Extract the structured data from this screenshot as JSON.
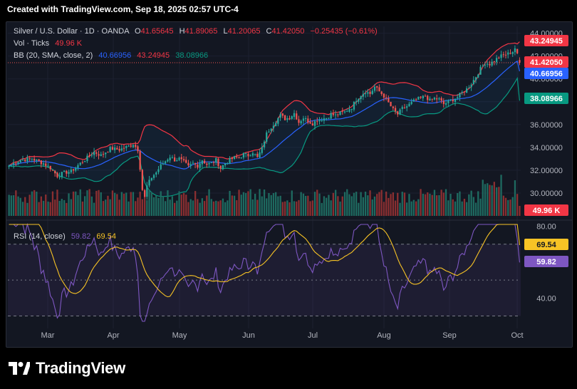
{
  "header": {
    "created_text": "Created with TradingView.com, Sep 18, 2025 02:57 UTC-4"
  },
  "legend": {
    "symbol": "Silver / U.S. Dollar · 1D · OANDA",
    "open_label": "O",
    "open": "41.65645",
    "high_label": "H",
    "high": "41.89065",
    "low_label": "L",
    "low": "41.20065",
    "close_label": "C",
    "close": "41.42050",
    "change": "−0.25435 (−0.61%)",
    "vol_label": "Vol · Ticks",
    "vol_value": "49.96 K",
    "bb_label": "BB (20, SMA, close, 2)",
    "bb_basis": "40.66956",
    "bb_upper": "43.24945",
    "bb_lower": "38.08966",
    "rsi_label": "RSI (14, close)",
    "rsi_value": "59.82",
    "rsi_ma": "69.54"
  },
  "price_badges": {
    "upper": "43.24945",
    "close": "41.42050",
    "basis": "40.66956",
    "lower": "38.08966",
    "volume": "49.96 K",
    "rsi_ma": "69.54",
    "rsi": "59.82"
  },
  "colors": {
    "up": "#26a69a",
    "down": "#ef5350",
    "basis": "#2962ff",
    "upper": "#f23645",
    "lower": "#089981",
    "rsi": "#7e57c2",
    "rsi_ma": "#f7c325",
    "volume_up": "#1e6a60",
    "volume_down": "#8a2f31",
    "grid": "#1c2030",
    "axis_text": "#b2b5be"
  },
  "footer": {
    "brand": "TradingView",
    "logo_icon": "tradingview-logo-icon"
  },
  "chart_data": [
    {
      "type": "candlestick",
      "title": "Silver / U.S. Dollar · 1D · OANDA",
      "x_tick_labels": [
        "Mar",
        "Apr",
        "May",
        "Jun",
        "Jul",
        "Aug",
        "Sep",
        "Oct"
      ],
      "y_tick_labels": [
        "30.00000",
        "32.00000",
        "34.00000",
        "36.00000",
        "40.00000",
        "42.00000",
        "44.00000"
      ],
      "ylim": [
        28.0,
        44.6
      ],
      "grid": true,
      "close_path": [
        [
          0,
          32.4
        ],
        [
          5,
          32.9
        ],
        [
          10,
          33.0
        ],
        [
          15,
          32.6
        ],
        [
          18,
          32.2
        ],
        [
          21,
          31.5
        ],
        [
          24,
          31.8
        ],
        [
          27,
          31.9
        ],
        [
          31,
          32.6
        ],
        [
          34,
          33.1
        ],
        [
          37,
          33.6
        ],
        [
          40,
          33.3
        ],
        [
          44,
          33.9
        ],
        [
          48,
          33.8
        ],
        [
          52,
          34.1
        ],
        [
          54,
          34.3
        ],
        [
          56,
          33.8
        ],
        [
          57,
          32.2
        ],
        [
          58,
          30.3
        ],
        [
          59,
          29.6
        ],
        [
          60,
          30.6
        ],
        [
          62,
          31.4
        ],
        [
          64,
          31.8
        ],
        [
          66,
          32.4
        ],
        [
          68,
          32.8
        ],
        [
          70,
          33.2
        ],
        [
          72,
          32.9
        ],
        [
          74,
          33.0
        ],
        [
          76,
          32.7
        ],
        [
          78,
          32.3
        ],
        [
          80,
          32.6
        ],
        [
          82,
          32.4
        ],
        [
          84,
          32.9
        ],
        [
          86,
          32.5
        ],
        [
          88,
          32.6
        ],
        [
          90,
          32.9
        ],
        [
          92,
          32.2
        ],
        [
          94,
          32.6
        ],
        [
          96,
          32.9
        ],
        [
          98,
          33.1
        ],
        [
          100,
          33.1
        ],
        [
          102,
          33.4
        ],
        [
          104,
          33.3
        ],
        [
          106,
          33.6
        ],
        [
          108,
          33.1
        ],
        [
          110,
          33.9
        ],
        [
          111,
          34.6
        ],
        [
          112,
          35.2
        ],
        [
          114,
          35.8
        ],
        [
          116,
          36.3
        ],
        [
          118,
          36.8
        ],
        [
          120,
          36.5
        ],
        [
          122,
          36.6
        ],
        [
          124,
          37.0
        ],
        [
          126,
          36.2
        ],
        [
          128,
          36.6
        ],
        [
          130,
          36.3
        ],
        [
          132,
          36.1
        ],
        [
          134,
          36.4
        ],
        [
          136,
          36.5
        ],
        [
          138,
          36.6
        ],
        [
          140,
          36.9
        ],
        [
          142,
          36.8
        ],
        [
          144,
          37.0
        ],
        [
          146,
          37.1
        ],
        [
          148,
          37.4
        ],
        [
          149,
          37.5
        ],
        [
          151,
          38.2
        ],
        [
          153,
          38.6
        ],
        [
          155,
          38.9
        ],
        [
          157,
          38.7
        ],
        [
          159,
          39.3
        ],
        [
          161,
          38.9
        ],
        [
          163,
          38.5
        ],
        [
          165,
          37.9
        ],
        [
          167,
          37.3
        ],
        [
          169,
          36.9
        ],
        [
          171,
          37.4
        ],
        [
          173,
          37.6
        ],
        [
          175,
          37.9
        ],
        [
          177,
          38.2
        ],
        [
          179,
          38.3
        ],
        [
          181,
          38.5
        ],
        [
          183,
          38.1
        ],
        [
          185,
          38.3
        ],
        [
          187,
          38.2
        ],
        [
          189,
          37.8
        ],
        [
          191,
          38.0
        ],
        [
          193,
          38.2
        ],
        [
          195,
          38.4
        ],
        [
          197,
          38.8
        ],
        [
          199,
          39.1
        ],
        [
          201,
          39.6
        ],
        [
          203,
          40.2
        ],
        [
          205,
          40.9
        ],
        [
          207,
          41.4
        ],
        [
          209,
          41.3
        ],
        [
          211,
          41.6
        ],
        [
          213,
          41.9
        ],
        [
          215,
          42.1
        ],
        [
          217,
          42.2
        ],
        [
          219,
          42.4
        ],
        [
          220,
          42.7
        ],
        [
          221,
          42.1
        ],
        [
          222,
          41.4
        ]
      ],
      "volume_label": "49.96 K",
      "bollinger_bands": {
        "period": 20,
        "std": 2,
        "source": "close",
        "basis_last": 40.66956,
        "upper_last": 43.24945,
        "lower_last": 38.08966
      }
    },
    {
      "type": "line",
      "title": "RSI (14, close)",
      "y_tick_labels": [
        "40.00",
        "80.00"
      ],
      "ylim": [
        27,
        81
      ],
      "bands": [
        70,
        50,
        30
      ],
      "series": [
        {
          "name": "RSI",
          "last": 59.82
        },
        {
          "name": "MA",
          "last": 69.54
        }
      ]
    }
  ]
}
